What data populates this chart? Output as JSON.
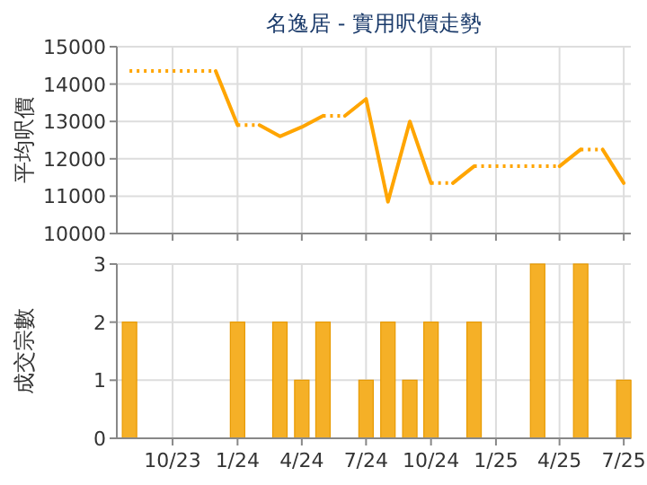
{
  "chart_data": [
    {
      "type": "line",
      "title": "名逸居 - 實用呎價走勢",
      "ylabel": "平均呎價",
      "xlim": [
        "2023-07-14",
        "2025-07-11"
      ],
      "ylim": [
        10000,
        15000
      ],
      "yticks": [
        10000,
        11000,
        12000,
        13000,
        14000,
        15000
      ],
      "xticks": [
        {
          "value": "2023-10",
          "label": null
        },
        {
          "value": "2024-01",
          "label": null
        },
        {
          "value": "2024-04",
          "label": null
        },
        {
          "value": "2024-07",
          "label": null
        },
        {
          "value": "2024-10",
          "label": null
        },
        {
          "value": "2025-01",
          "label": null
        },
        {
          "value": "2025-04",
          "label": null
        },
        {
          "value": "2025-07",
          "label": null
        }
      ],
      "tick_labels": "y",
      "grid": true,
      "series": [
        {
          "color": "#ffa500",
          "line_style": "dotted",
          "x": [
            "2023-08",
            "2023-09",
            "2023-10",
            "2023-11",
            "2023-12"
          ],
          "values": [
            14350,
            14350,
            14350,
            14350,
            14350
          ]
        },
        {
          "color": "#ffa500",
          "line_style": "dotted",
          "x": [
            "2024-01",
            "2024-02"
          ],
          "values": [
            12900,
            12900
          ]
        },
        {
          "color": "#ffa500",
          "line_style": "dotted",
          "x": [
            "2024-05",
            "2024-06"
          ],
          "values": [
            13150,
            13150
          ]
        },
        {
          "color": "#ffa500",
          "line_style": "dotted",
          "x": [
            "2024-10",
            "2024-11"
          ],
          "values": [
            11350,
            11350
          ]
        },
        {
          "color": "#ffa500",
          "line_style": "dotted",
          "x": [
            "2024-12",
            "2025-01",
            "2025-02",
            "2025-03",
            "2025-04"
          ],
          "values": [
            11800,
            11800,
            11800,
            11800,
            11800
          ]
        },
        {
          "color": "#ffa500",
          "line_style": "dotted",
          "x": [
            "2025-05",
            "2025-06"
          ],
          "values": [
            12250,
            12250
          ]
        },
        {
          "color": "#ffa500",
          "line_style": "solid",
          "x": [
            "2023-12",
            "2024-01"
          ],
          "values": [
            14350,
            12900
          ]
        },
        {
          "color": "#ffa500",
          "line_style": "solid",
          "x": [
            "2024-02",
            "2024-03",
            "2024-04",
            "2024-05"
          ],
          "values": [
            12900,
            12600,
            12850,
            13150
          ]
        },
        {
          "color": "#ffa500",
          "line_style": "solid",
          "x": [
            "2024-06",
            "2024-07",
            "2024-08",
            "2024-09",
            "2024-10"
          ],
          "values": [
            13150,
            13600,
            10850,
            13000,
            11350
          ]
        },
        {
          "color": "#ffa500",
          "line_style": "solid",
          "x": [
            "2024-11",
            "2024-12"
          ],
          "values": [
            11350,
            11800
          ]
        },
        {
          "color": "#ffa500",
          "line_style": "solid",
          "x": [
            "2025-04",
            "2025-05"
          ],
          "values": [
            11800,
            12250
          ]
        },
        {
          "color": "#ffa500",
          "line_style": "solid",
          "x": [
            "2025-06",
            "2025-07"
          ],
          "values": [
            12250,
            11350
          ]
        }
      ]
    },
    {
      "type": "bar",
      "ylabel": "成交宗數",
      "xlim": [
        "2023-07-14",
        "2025-07-11"
      ],
      "ylim": [
        0,
        3
      ],
      "yticks": [
        0,
        1,
        2,
        3
      ],
      "xticks": [
        {
          "value": "2023-10",
          "label": "10/23"
        },
        {
          "value": "2024-01",
          "label": "1/24"
        },
        {
          "value": "2024-04",
          "label": "4/24"
        },
        {
          "value": "2024-07",
          "label": "7/24"
        },
        {
          "value": "2024-10",
          "label": "10/24"
        },
        {
          "value": "2025-01",
          "label": "1/25"
        },
        {
          "value": "2025-04",
          "label": "4/25"
        },
        {
          "value": "2025-07",
          "label": "7/25"
        }
      ],
      "grid": true,
      "x": [
        "2023-08",
        "2024-01",
        "2024-03",
        "2024-04",
        "2024-05",
        "2024-07",
        "2024-08",
        "2024-09",
        "2024-10",
        "2024-12",
        "2025-03",
        "2025-05",
        "2025-07"
      ],
      "series": [
        {
          "color": "#f5b027",
          "values": [
            2,
            2,
            2,
            1,
            2,
            1,
            2,
            1,
            2,
            2,
            3,
            3,
            1
          ]
        }
      ]
    }
  ]
}
